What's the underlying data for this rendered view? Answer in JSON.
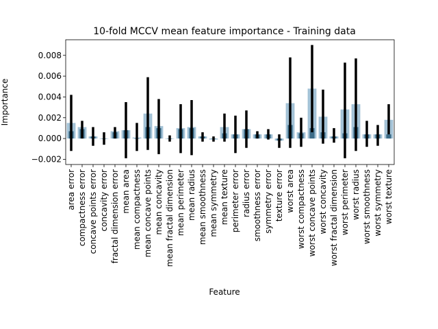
{
  "chart_data": {
    "type": "bar",
    "title": "10-fold MCCV mean feature importance - Training data",
    "xlabel": "Feature",
    "ylabel": "Importance",
    "ylim": [
      -0.0025,
      0.0095
    ],
    "yticks": [
      -0.002,
      0.0,
      0.002,
      0.004,
      0.006,
      0.008
    ],
    "ytick_labels": [
      "−0.002",
      "0.000",
      "0.002",
      "0.004",
      "0.006",
      "0.008"
    ],
    "grid": false,
    "legend": "none",
    "colors": {
      "bar_light": "#a3c2d6",
      "bar_dark": "#3c6c88",
      "error_bar": "#000000"
    },
    "categories": [
      "area error",
      "compactness error",
      "concave points error",
      "concavity error",
      "fractal dimension error",
      "mean area",
      "mean compactness",
      "mean concave points",
      "mean concavity",
      "mean fractal dimension",
      "mean perimeter",
      "mean radius",
      "mean smoothness",
      "mean symmetry",
      "mean texture",
      "perimeter error",
      "radius error",
      "smoothness error",
      "symmetry error",
      "texture error",
      "worst area",
      "worst compactness",
      "worst concave points",
      "worst concavity",
      "worst fractal dimension",
      "worst perimeter",
      "worst radius",
      "worst smoothness",
      "worst symmetry",
      "worst texture"
    ],
    "values": [
      0.0015,
      0.0011,
      0.0002,
      0.0,
      0.0007,
      0.0008,
      0.0001,
      0.0024,
      0.0012,
      0.0,
      0.001,
      0.0011,
      0.0002,
      -0.0001,
      0.0011,
      0.0004,
      0.0009,
      0.0004,
      0.0004,
      -0.0002,
      0.0034,
      0.0006,
      0.0048,
      0.0021,
      0.0002,
      0.0028,
      0.0033,
      0.0004,
      0.0004,
      0.0018
    ],
    "dark_values": [
      0.0007,
      0.0009,
      0.0002,
      0.0,
      0.0006,
      0.0008,
      0.0,
      0.0011,
      0.001,
      0.0,
      0.0009,
      0.001,
      0.0002,
      0.0,
      0.0005,
      0.0004,
      0.0009,
      0.0004,
      0.0004,
      -0.0002,
      0.0013,
      0.0005,
      0.001,
      0.0006,
      0.0002,
      0.0005,
      0.0011,
      0.0004,
      0.0004,
      0.0004
    ],
    "error_low": [
      -0.0012,
      0.0,
      -0.0007,
      -0.0006,
      0.0,
      -0.0019,
      -0.0012,
      -0.0011,
      -0.0015,
      -0.0003,
      -0.0014,
      -0.0016,
      -0.0003,
      -0.0003,
      -0.0003,
      -0.0014,
      -0.0009,
      0.0,
      -0.0001,
      -0.0009,
      -0.0009,
      -0.0008,
      0.0006,
      -0.0005,
      -0.0004,
      -0.0019,
      -0.0012,
      -0.0008,
      -0.0007,
      0.0004
    ],
    "error_high": [
      0.0042,
      0.0017,
      0.0011,
      0.0006,
      0.0011,
      0.0035,
      0.0015,
      0.0059,
      0.0038,
      0.0003,
      0.0033,
      0.0037,
      0.0006,
      0.0002,
      0.0024,
      0.0022,
      0.0027,
      0.0007,
      0.0009,
      0.0004,
      0.0078,
      0.002,
      0.009,
      0.0047,
      0.001,
      0.0073,
      0.0077,
      0.0017,
      0.0013,
      0.0033
    ]
  }
}
